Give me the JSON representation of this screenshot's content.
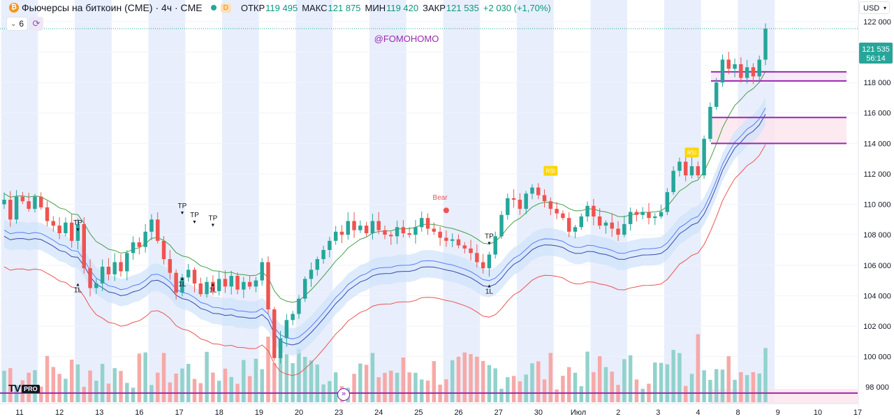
{
  "header": {
    "coin_icon": "bitcoin-icon",
    "symbol_title": "Фьючерсы на биткоин (CME) · 4ч · CME",
    "delayed_badge": "D",
    "open_label": "ОТКР",
    "open_value": "119 495",
    "high_label": "МАКС",
    "high_value": "121 875",
    "low_label": "МИН",
    "low_value": "119 420",
    "close_label": "ЗАКР",
    "close_value": "121 535",
    "change_value": "+2 030 (+1,70%)",
    "indicator_count": "6",
    "currency": "USD"
  },
  "watermark": "@FOMOHOMO",
  "logo": {
    "brand": "TV",
    "badge": "PRO"
  },
  "price_label": {
    "price": "121 535",
    "countdown": "56:14"
  },
  "annotations": {
    "tp": "TP",
    "one_l": "1L",
    "bear": "Bear",
    "rsi": "RSI"
  },
  "colors": {
    "up": "#26a69a",
    "down": "#ef5350",
    "vol_up": "#92d2cc",
    "vol_down": "#f7a9a7",
    "session_band": "#e8eefc",
    "purple": "#9c27b0",
    "upper_line": "#43a047",
    "lower_line": "#ef5350",
    "mid_line": "#5c7cfa",
    "band_fill": "#cfe3fb"
  },
  "chart_data": {
    "type": "candlestick",
    "title": "Фьючерсы на биткоин (CME) · 4ч · CME",
    "ylim": [
      97000,
      122500
    ],
    "y_ticks": [
      98000,
      100000,
      102000,
      104000,
      106000,
      108000,
      110000,
      112000,
      114000,
      116000,
      118000,
      120000,
      122000
    ],
    "y_tick_labels": [
      "98 000",
      "100 000",
      "102 000",
      "104 000",
      "106 000",
      "108 000",
      "110 000",
      "112 000",
      "114 000",
      "116 000",
      "118 000",
      "120 000",
      "122 000"
    ],
    "x_labels": [
      "11",
      "12",
      "13",
      "16",
      "17",
      "18",
      "19",
      "20",
      "23",
      "24",
      "25",
      "26",
      "27",
      "30",
      "Июл",
      "2",
      "3",
      "4",
      "8",
      "9",
      "10",
      "17"
    ],
    "candles_close": [
      110300,
      109000,
      110500,
      110200,
      109700,
      110500,
      109800,
      108900,
      108600,
      108100,
      108800,
      107600,
      108700,
      105800,
      104500,
      104800,
      105900,
      105400,
      106200,
      105600,
      106800,
      107500,
      107200,
      108200,
      109000,
      107600,
      106400,
      105500,
      104200,
      105200,
      105700,
      104800,
      104100,
      104900,
      104300,
      105100,
      104600,
      105300,
      104400,
      104900,
      104600,
      105000,
      106200,
      103100,
      99900,
      101200,
      102400,
      102800,
      103800,
      105100,
      105700,
      106400,
      107000,
      107600,
      108200,
      108000,
      108900,
      108300,
      108600,
      108100,
      108900,
      108300,
      108000,
      107900,
      108500,
      108100,
      108000,
      108500,
      109100,
      108400,
      108200,
      107800,
      107600,
      107700,
      107300,
      107100,
      106800,
      106200,
      105800,
      106700,
      107900,
      109300,
      110400,
      110300,
      109700,
      110700,
      111100,
      110600,
      110200,
      109700,
      109400,
      109100,
      108200,
      108500,
      109200,
      109900,
      109200,
      108600,
      108800,
      108400,
      108000,
      108700,
      109500,
      109300,
      109500,
      109100,
      109200,
      109500,
      110800,
      112200,
      112800,
      111900,
      112500,
      111900,
      114300,
      116400,
      118000,
      119500,
      118900,
      119200,
      118300,
      119000,
      118400,
      119500,
      121535
    ],
    "annotations": [
      "TP",
      "1L",
      "Bear",
      "RSI"
    ],
    "horizontal_levels": [
      118700,
      118100,
      115700,
      114000,
      97600
    ]
  }
}
